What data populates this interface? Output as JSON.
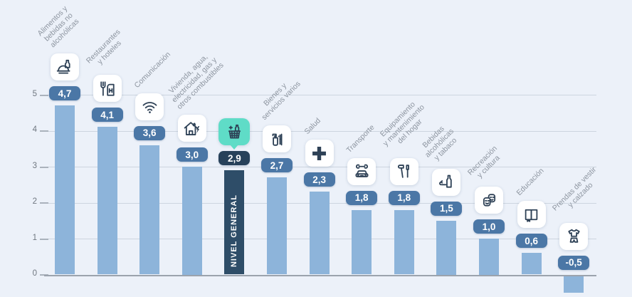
{
  "chart_data": {
    "type": "bar",
    "title": "",
    "xlabel": "",
    "ylabel": "",
    "ylim": [
      -0.5,
      5
    ],
    "yticks": [
      0,
      1,
      2,
      3,
      4,
      5
    ],
    "grid": true,
    "highlight_bar_label": "NIVEL GENERAL",
    "points": [
      {
        "label": "Alimentos y\nbebidas no\nalcohólicas",
        "value": 4.7,
        "display": "4,7",
        "icon": "food-icon",
        "highlight": false
      },
      {
        "label": "Restaurantes\ny hoteles",
        "value": 4.1,
        "display": "4,1",
        "icon": "restaurant-hotel-icon",
        "highlight": false
      },
      {
        "label": "Comunicación",
        "value": 3.6,
        "display": "3,6",
        "icon": "wifi-icon",
        "highlight": false
      },
      {
        "label": "Vivienda, agua,\nelectricidad, gas y\notros combustibles",
        "value": 3.0,
        "display": "3,0",
        "icon": "housing-icon",
        "highlight": false
      },
      {
        "label": "",
        "value": 2.9,
        "display": "2,9",
        "icon": "basket-icon",
        "highlight": true,
        "bar_label": "NIVEL GENERAL"
      },
      {
        "label": "Bienes y\nservicios varios",
        "value": 2.7,
        "display": "2,7",
        "icon": "toiletries-icon",
        "highlight": false
      },
      {
        "label": "Salud",
        "value": 2.3,
        "display": "2,3",
        "icon": "health-cross-icon",
        "highlight": false
      },
      {
        "label": "Transporte",
        "value": 1.8,
        "display": "1,8",
        "icon": "car-repair-icon",
        "highlight": false
      },
      {
        "label": "Equipamiento\ny mantenimiento\ndel hogar",
        "value": 1.8,
        "display": "1,8",
        "icon": "tools-icon",
        "highlight": false
      },
      {
        "label": "Bebidas\nalcohólicas\ny tabaco",
        "value": 1.5,
        "display": "1,5",
        "icon": "alcohol-tobacco-icon",
        "highlight": false
      },
      {
        "label": "Recreación\ny cultura",
        "value": 1.0,
        "display": "1,0",
        "icon": "theater-masks-icon",
        "highlight": false
      },
      {
        "label": "Educación",
        "value": 0.6,
        "display": "0,6",
        "icon": "book-icon",
        "highlight": false
      },
      {
        "label": "Prendas de vestir\ny calzado",
        "value": -0.5,
        "display": "-0,5",
        "icon": "clothing-icon",
        "highlight": false
      }
    ]
  },
  "colors": {
    "background": "#ecf1f9",
    "bar": "#8db4da",
    "bar_highlight": "#2e4d68",
    "badge": "#4b77a6",
    "badge_highlight": "#27415a",
    "icon_card": "#ffffff",
    "icon_card_highlight": "#5fdcc7",
    "icon_stroke": "#2e4156",
    "gridline": "#cdd5df",
    "zero_line": "#9ba3ad",
    "tick_text": "#6f7780",
    "label_text": "#8d95a0"
  }
}
